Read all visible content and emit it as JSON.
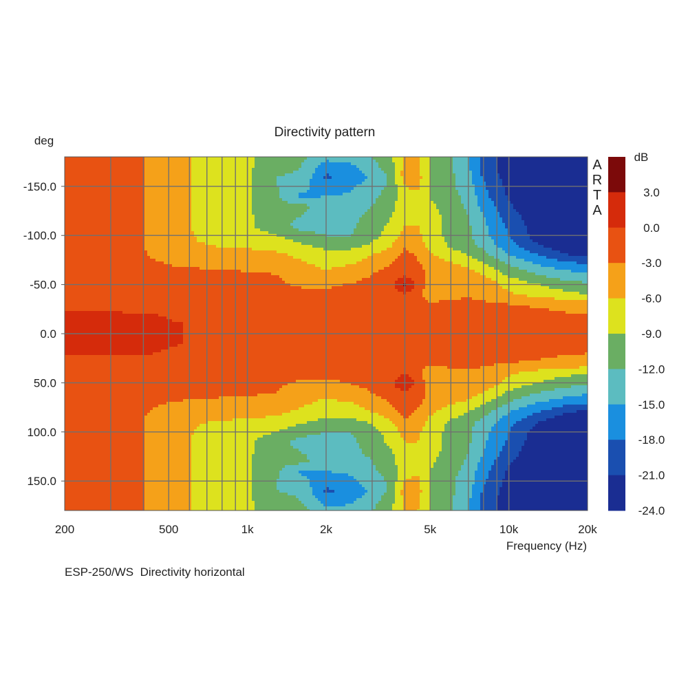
{
  "chart_data": {
    "type": "heatmap",
    "title": "Directivity pattern",
    "ylabel": "deg",
    "xlabel": "Frequency (Hz)",
    "colorbar_label": "dB",
    "watermark": "ARTA",
    "caption": "ESP-250/WS  Directivity horizontal",
    "x_scale": "log",
    "xlim": [
      200,
      20000
    ],
    "ylim": [
      -180,
      180
    ],
    "y_inverted": true,
    "x_ticks": [
      {
        "value": 200,
        "label": "200"
      },
      {
        "value": 500,
        "label": "500"
      },
      {
        "value": 1000,
        "label": "1k"
      },
      {
        "value": 2000,
        "label": "2k"
      },
      {
        "value": 5000,
        "label": "5k"
      },
      {
        "value": 10000,
        "label": "10k"
      },
      {
        "value": 20000,
        "label": "20k"
      }
    ],
    "y_ticks": [
      {
        "value": -150,
        "label": "-150.0"
      },
      {
        "value": -100,
        "label": "-100.0"
      },
      {
        "value": -50,
        "label": "-50.0"
      },
      {
        "value": 0,
        "label": "0.0"
      },
      {
        "value": 50,
        "label": "50.0"
      },
      {
        "value": 100,
        "label": "100.0"
      },
      {
        "value": 150,
        "label": "150.0"
      }
    ],
    "grid": true,
    "colorbar_ticks": [
      "3.0",
      "0.0",
      "-3.0",
      "-6.0",
      "-9.0",
      "-12.0",
      "-15.0",
      "-18.0",
      "-21.0",
      "-24.0"
    ],
    "color_levels": [
      {
        "max": 6,
        "min": 3,
        "color": "#7c0a0a"
      },
      {
        "max": 3,
        "min": 0,
        "color": "#d52b0b"
      },
      {
        "max": 0,
        "min": -3,
        "color": "#e85212"
      },
      {
        "max": -3,
        "min": -6,
        "color": "#f5a119"
      },
      {
        "max": -6,
        "min": -9,
        "color": "#dde21e"
      },
      {
        "max": -9,
        "min": -12,
        "color": "#6aae63"
      },
      {
        "max": -12,
        "min": -15,
        "color": "#5cbcc0"
      },
      {
        "max": -15,
        "min": -18,
        "color": "#1a8fdf"
      },
      {
        "max": -18,
        "min": -21,
        "color": "#1a4fb0"
      },
      {
        "max": -21,
        "min": -24,
        "color": "#1a2d92"
      }
    ],
    "frequencies_hz": [
      200,
      300,
      400,
      500,
      650,
      800,
      1000,
      1300,
      1600,
      2000,
      2500,
      3000,
      3500,
      4000,
      4500,
      5000,
      6000,
      7000,
      8000,
      10000,
      13000,
      16000,
      20000
    ],
    "angles_deg": [
      0,
      10,
      20,
      30,
      40,
      50,
      60,
      70,
      80,
      90,
      100,
      110,
      120,
      130,
      140,
      150,
      160,
      170,
      180
    ],
    "symmetric_about_0": true,
    "values_db": [
      [
        0.5,
        0.5,
        0.4,
        0.2,
        -0.2,
        -0.8,
        -1.0,
        -1.5,
        -1.8,
        -1.5,
        -0.5,
        -0.4,
        -1.0,
        -0.5,
        -1.5,
        -1.3,
        -0.5,
        -0.3,
        -1.0,
        -1.5,
        -2.0,
        -2.5,
        -2.8
      ],
      [
        0.5,
        0.5,
        0.4,
        0.2,
        -0.2,
        -0.8,
        -1.0,
        -1.5,
        -1.8,
        -1.5,
        -0.5,
        -0.5,
        -1.0,
        -0.4,
        -1.5,
        -1.4,
        -0.8,
        -0.3,
        -1.2,
        -1.5,
        -2.0,
        -2.6,
        -2.9
      ],
      [
        0.3,
        0.3,
        0.2,
        -0.2,
        -0.8,
        -1.2,
        -1.3,
        -1.6,
        -1.8,
        -1.6,
        -0.8,
        -1.0,
        -1.2,
        -0.2,
        -1.5,
        -1.6,
        -1.2,
        -0.6,
        -1.5,
        -1.8,
        -2.2,
        -2.8,
        -3.0
      ],
      [
        -1.0,
        -1.2,
        -1.5,
        -1.5,
        -1.6,
        -1.7,
        -1.8,
        -1.8,
        -1.9,
        -1.8,
        -1.6,
        -1.4,
        -1.3,
        -0.5,
        -1.8,
        -2.5,
        -2.0,
        -2.0,
        -2.5,
        -3.0,
        -3.5,
        -3.8,
        -4.0
      ],
      [
        -1.5,
        -1.6,
        -1.8,
        -2.0,
        -2.0,
        -2.0,
        -1.9,
        -1.8,
        -1.9,
        -2.2,
        -2.4,
        -1.8,
        -1.5,
        -0.5,
        -2.0,
        -5.5,
        -4.0,
        -3.5,
        -4.0,
        -5.5,
        -7.0,
        -8.0,
        -9.0
      ],
      [
        -1.5,
        -1.6,
        -1.8,
        -2.0,
        -2.0,
        -2.0,
        -2.0,
        -2.4,
        -3.5,
        -3.5,
        -2.8,
        -1.8,
        -1.2,
        3.5,
        -1.2,
        -4.0,
        -4.0,
        -3.5,
        -4.0,
        -7.0,
        -9.0,
        -10.5,
        -11.5
      ],
      [
        -1.5,
        -1.6,
        -1.8,
        -2.0,
        -2.0,
        -2.2,
        -2.4,
        -3.0,
        -5.0,
        -5.5,
        -4.5,
        -3.0,
        -1.8,
        -0.5,
        -2.0,
        -3.5,
        -4.0,
        -4.5,
        -6.0,
        -9.5,
        -12.0,
        -13.5,
        -14.5
      ],
      [
        -1.5,
        -1.8,
        -2.2,
        -3.0,
        -3.5,
        -3.8,
        -4.2,
        -4.5,
        -5.5,
        -6.5,
        -6.0,
        -4.5,
        -3.0,
        -1.0,
        -2.5,
        -4.0,
        -5.5,
        -6.5,
        -8.5,
        -12.0,
        -15.0,
        -16.5,
        -17.5
      ],
      [
        -1.5,
        -2.0,
        -2.8,
        -4.0,
        -5.0,
        -5.0,
        -5.0,
        -5.5,
        -6.5,
        -8.0,
        -7.5,
        -6.0,
        -4.5,
        -2.0,
        -3.5,
        -5.5,
        -7.5,
        -9.0,
        -11.0,
        -15.0,
        -18.0,
        -20.5,
        -22.0
      ],
      [
        -1.5,
        -2.0,
        -3.0,
        -4.5,
        -5.8,
        -6.2,
        -6.5,
        -7.0,
        -8.5,
        -10.0,
        -10.0,
        -8.5,
        -6.5,
        -3.5,
        -4.5,
        -7.0,
        -9.5,
        -11.0,
        -13.0,
        -17.0,
        -21.0,
        -23.0,
        -24.0
      ],
      [
        -1.5,
        -2.0,
        -3.0,
        -4.5,
        -6.3,
        -7.0,
        -7.5,
        -9.0,
        -11.0,
        -12.0,
        -12.0,
        -10.0,
        -8.0,
        -5.0,
        -5.5,
        -7.5,
        -10.0,
        -11.5,
        -14.0,
        -18.0,
        -22.5,
        -24.0,
        -24.0
      ],
      [
        -1.5,
        -2.0,
        -3.0,
        -4.5,
        -6.5,
        -7.5,
        -8.5,
        -11.0,
        -13.0,
        -13.0,
        -12.5,
        -10.5,
        -8.5,
        -6.0,
        -6.0,
        -7.5,
        -10.0,
        -11.5,
        -14.5,
        -18.5,
        -23.0,
        -24.0,
        -24.0
      ],
      [
        -1.5,
        -2.0,
        -3.0,
        -4.5,
        -6.5,
        -7.5,
        -8.5,
        -11.0,
        -12.0,
        -13.5,
        -13.0,
        -11.0,
        -9.5,
        -6.0,
        -6.5,
        -8.0,
        -10.0,
        -12.0,
        -15.0,
        -19.5,
        -23.5,
        -24.0,
        -24.0
      ],
      [
        -1.5,
        -2.0,
        -3.0,
        -4.5,
        -6.5,
        -7.5,
        -8.5,
        -11.5,
        -11.0,
        -14.0,
        -14.0,
        -12.0,
        -10.5,
        -7.0,
        -7.0,
        -8.5,
        -10.5,
        -12.5,
        -16.0,
        -20.5,
        -24.0,
        -24.0,
        -24.0
      ],
      [
        -1.5,
        -2.0,
        -3.0,
        -4.5,
        -6.5,
        -7.5,
        -8.5,
        -11.5,
        -15.5,
        -15.0,
        -14.5,
        -12.5,
        -11.0,
        -6.5,
        -6.5,
        -9.0,
        -11.0,
        -13.0,
        -17.0,
        -21.5,
        -24.0,
        -24.0,
        -24.0
      ],
      [
        -1.5,
        -2.0,
        -3.0,
        -4.5,
        -6.5,
        -7.5,
        -8.5,
        -12.0,
        -14.0,
        -17.0,
        -15.5,
        -13.5,
        -11.5,
        -6.0,
        -5.5,
        -9.0,
        -11.5,
        -13.5,
        -17.5,
        -22.0,
        -24.0,
        -24.0,
        -24.0
      ],
      [
        -1.5,
        -2.0,
        -3.0,
        -4.5,
        -6.5,
        -7.5,
        -8.5,
        -12.0,
        -12.5,
        -18.5,
        -17.0,
        -14.5,
        -11.5,
        -4.5,
        -5.0,
        -9.0,
        -11.5,
        -14.0,
        -18.5,
        -22.5,
        -24.0,
        -24.0,
        -24.0
      ],
      [
        -1.5,
        -2.0,
        -3.0,
        -4.5,
        -6.5,
        -7.5,
        -8.5,
        -11.0,
        -12.0,
        -16.5,
        -15.5,
        -13.0,
        -10.5,
        -5.0,
        -5.5,
        -9.0,
        -11.5,
        -14.5,
        -19.0,
        -23.0,
        -24.0,
        -24.0,
        -24.0
      ],
      [
        -1.5,
        -2.0,
        -3.0,
        -4.5,
        -6.5,
        -7.5,
        -8.5,
        -10.5,
        -11.0,
        -14.0,
        -14.0,
        -12.0,
        -10.0,
        -5.5,
        -6.0,
        -9.0,
        -11.5,
        -14.5,
        -19.0,
        -23.0,
        -24.0,
        -24.0,
        -24.0
      ]
    ]
  }
}
